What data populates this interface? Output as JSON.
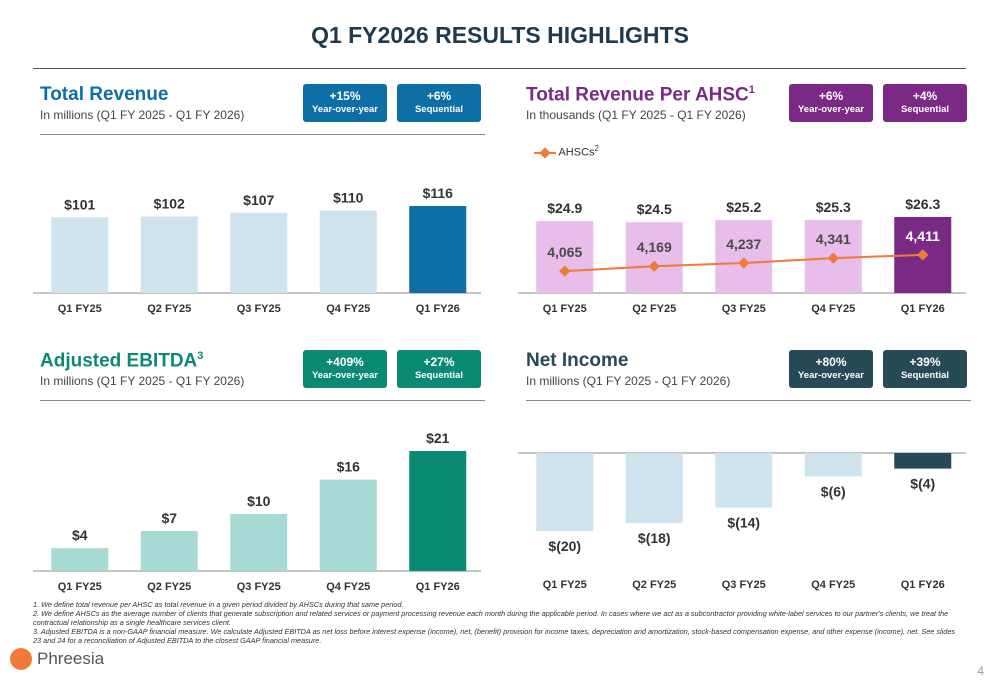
{
  "page": {
    "title": "Q1 FY2026 RESULTS HIGHLIGHTS",
    "page_number": "4"
  },
  "logo": {
    "text": "Phreesia"
  },
  "panels": [
    {
      "title": "Total Revenue",
      "title_sup": "",
      "subtitle": "In millions (Q1 FY 2025 - Q1 FY 2026)",
      "badge_color": "#0e6fa6",
      "badges": [
        {
          "value": "+15%",
          "label": "Year-over-year"
        },
        {
          "value": "+6%",
          "label": "Sequential"
        }
      ]
    },
    {
      "title": "Total Revenue Per AHSC",
      "title_sup": "1",
      "subtitle": "In thousands (Q1 FY 2025 - Q1 FY 2026)",
      "badge_color": "#7a2a85",
      "badges": [
        {
          "value": "+6%",
          "label": "Year-over-year"
        },
        {
          "value": "+4%",
          "label": "Sequential"
        }
      ]
    },
    {
      "title": "Adjusted EBITDA",
      "title_sup": "3",
      "subtitle": "In millions (Q1 FY 2025 - Q1 FY 2026)",
      "badge_color": "#0b8a73",
      "badges": [
        {
          "value": "+409%",
          "label": "Year-over-year"
        },
        {
          "value": "+27%",
          "label": "Sequential"
        }
      ]
    },
    {
      "title": "Net Income",
      "title_sup": "",
      "subtitle": "In millions (Q1 FY 2025 - Q1 FY 2026)",
      "badge_color": "#274a57",
      "badges": [
        {
          "value": "+80%",
          "label": "Year-over-year"
        },
        {
          "value": "+39%",
          "label": "Sequential"
        }
      ]
    }
  ],
  "legend": {
    "label": "AHSCs",
    "sup": "2"
  },
  "chart_data": [
    {
      "type": "bar",
      "categories": [
        "Q1 FY25",
        "Q2 FY25",
        "Q3 FY25",
        "Q4 FY25",
        "Q1 FY26"
      ],
      "values": [
        101,
        102,
        107,
        110,
        116
      ],
      "labels": [
        "$101",
        "$102",
        "$107",
        "$110",
        "$116"
      ],
      "colors": [
        "#cfe3ee",
        "#cfe3ee",
        "#cfe3ee",
        "#cfe3ee",
        "#0e6fa6"
      ],
      "ylim": [
        0,
        116
      ]
    },
    {
      "type": "bar",
      "categories": [
        "Q1 FY25",
        "Q2 FY25",
        "Q3 FY25",
        "Q4 FY25",
        "Q1 FY26"
      ],
      "values": [
        24.9,
        24.5,
        25.2,
        25.3,
        26.3
      ],
      "labels": [
        "$24.9",
        "$24.5",
        "$25.2",
        "$25.3",
        "$26.3"
      ],
      "colors": [
        "#e8bdea",
        "#e8bdea",
        "#e8bdea",
        "#e8bdea",
        "#7a2a85"
      ],
      "ylim": [
        0,
        26.3
      ],
      "line": {
        "name": "AHSCs",
        "values": [
          4065,
          4169,
          4237,
          4341,
          4411
        ],
        "labels": [
          "4,065",
          "4,169",
          "4,237",
          "4,341",
          "4,411"
        ],
        "color": "#f07a37"
      }
    },
    {
      "type": "bar",
      "categories": [
        "Q1 FY25",
        "Q2 FY25",
        "Q3 FY25",
        "Q4 FY25",
        "Q1 FY26"
      ],
      "values": [
        4,
        7,
        10,
        16,
        21
      ],
      "labels": [
        "$4",
        "$7",
        "$10",
        "$16",
        "$21"
      ],
      "colors": [
        "#a8dad5",
        "#a8dad5",
        "#a8dad5",
        "#a8dad5",
        "#0b8a73"
      ],
      "ylim": [
        0,
        21
      ]
    },
    {
      "type": "bar",
      "categories": [
        "Q1 FY25",
        "Q2 FY25",
        "Q3 FY25",
        "Q4 FY25",
        "Q1 FY26"
      ],
      "values": [
        -20,
        -18,
        -14,
        -6,
        -4
      ],
      "labels": [
        "$(20)",
        "$(18)",
        "$(14)",
        "$(6)",
        "$(4)"
      ],
      "colors": [
        "#cfe3ee",
        "#cfe3ee",
        "#cfe3ee",
        "#cfe3ee",
        "#274a57"
      ],
      "ylim": [
        -20,
        0
      ]
    }
  ],
  "footnotes": [
    "1.  We define total revenue per AHSC as total revenue in a given period divided by AHSCs during that same period.",
    "2.  We define AHSCs as the average number of clients that generate subscription and related services or payment processing revenue each month during the applicable period. In cases where we act as a subcontractor providing white-label services to our partner's clients, we treat the contractual relationship as a single healthcare services client.",
    "3.  Adjusted EBITDA is a non-GAAP financial measure. We calculate Adjusted EBITDA as net loss before interest expense (income), net, (benefit) provision for income taxes, depreciation and amortization, stock-based compensation expense, and other expense (income), net. See slides 23 and 24 for a reconciliation of Adjusted EBITDA to the closest GAAP financial measure."
  ]
}
